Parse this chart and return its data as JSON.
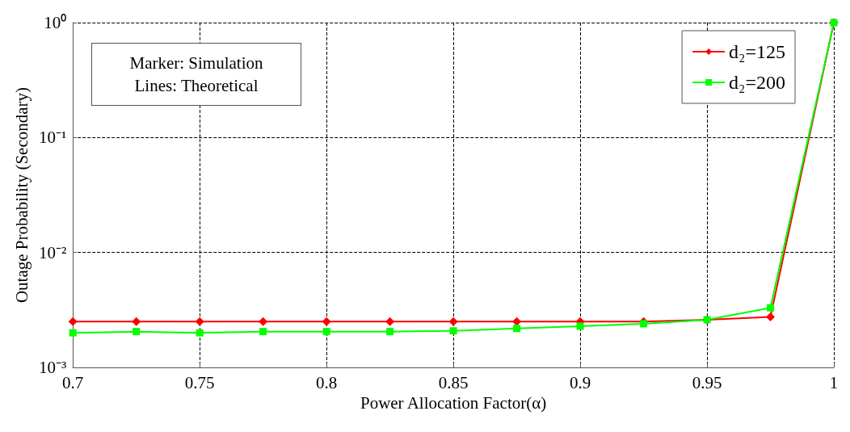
{
  "chart_data": {
    "type": "line",
    "xlabel": "Power Allocation Factor(α)",
    "ylabel": "Outage Probability (Secondary)",
    "x": [
      0.7,
      0.725,
      0.75,
      0.775,
      0.8,
      0.825,
      0.85,
      0.875,
      0.9,
      0.925,
      0.95,
      0.975,
      1
    ],
    "series": [
      {
        "name": "d₂=125",
        "color": "#ff0000",
        "marker": "diamond",
        "values": [
          0.0025,
          0.0025,
          0.0025,
          0.0025,
          0.0025,
          0.0025,
          0.0025,
          0.0025,
          0.0025,
          0.0025,
          0.0026,
          0.00275,
          1
        ]
      },
      {
        "name": "d₂=200",
        "color": "#00ff00",
        "marker": "square",
        "values": [
          0.002,
          0.00205,
          0.002,
          0.00205,
          0.00205,
          0.00205,
          0.00208,
          0.00218,
          0.00228,
          0.0024,
          0.0026,
          0.0033,
          1
        ]
      }
    ],
    "xlim": [
      0.7,
      1
    ],
    "xticks": [
      0.7,
      0.75,
      0.8,
      0.85,
      0.9,
      0.95,
      1
    ],
    "ylim": [
      0.001,
      1
    ],
    "yticks": [
      {
        "value": 0.001,
        "label": "10⁻³"
      },
      {
        "value": 0.01,
        "label": "10⁻²"
      },
      {
        "value": 0.1,
        "label": "10⁻¹"
      },
      {
        "value": 1,
        "label": "10⁰"
      }
    ],
    "log": "y",
    "grid": true,
    "legend": "top right",
    "line_style": "solid",
    "annotations": [
      "Marker: Simulation",
      "Lines: Theoretical"
    ]
  }
}
